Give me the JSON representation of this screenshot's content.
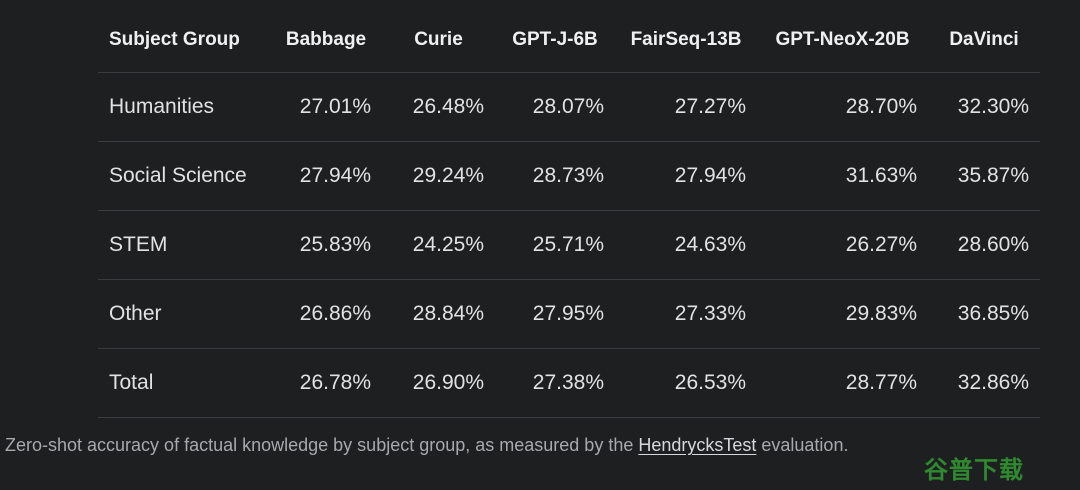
{
  "table": {
    "headers": [
      "Subject Group",
      "Babbage",
      "Curie",
      "GPT-J-6B",
      "FairSeq-13B",
      "GPT-NeoX-20B",
      "DaVinci"
    ],
    "rows": [
      [
        "Humanities",
        "27.01%",
        "26.48%",
        "28.07%",
        "27.27%",
        "28.70%",
        "32.30%"
      ],
      [
        "Social Science",
        "27.94%",
        "29.24%",
        "28.73%",
        "27.94%",
        "31.63%",
        "35.87%"
      ],
      [
        "STEM",
        "25.83%",
        "24.25%",
        "25.71%",
        "24.63%",
        "26.27%",
        "28.60%"
      ],
      [
        "Other",
        "26.86%",
        "28.84%",
        "27.95%",
        "27.33%",
        "29.83%",
        "36.85%"
      ],
      [
        "Total",
        "26.78%",
        "26.90%",
        "27.38%",
        "26.53%",
        "28.77%",
        "32.86%"
      ]
    ]
  },
  "caption": {
    "prefix": "Zero-shot accuracy of factual knowledge by subject group, as measured by the ",
    "link_text": "HendrycksTest",
    "suffix": " evaluation."
  },
  "watermark": {
    "text": "谷普下载"
  }
}
